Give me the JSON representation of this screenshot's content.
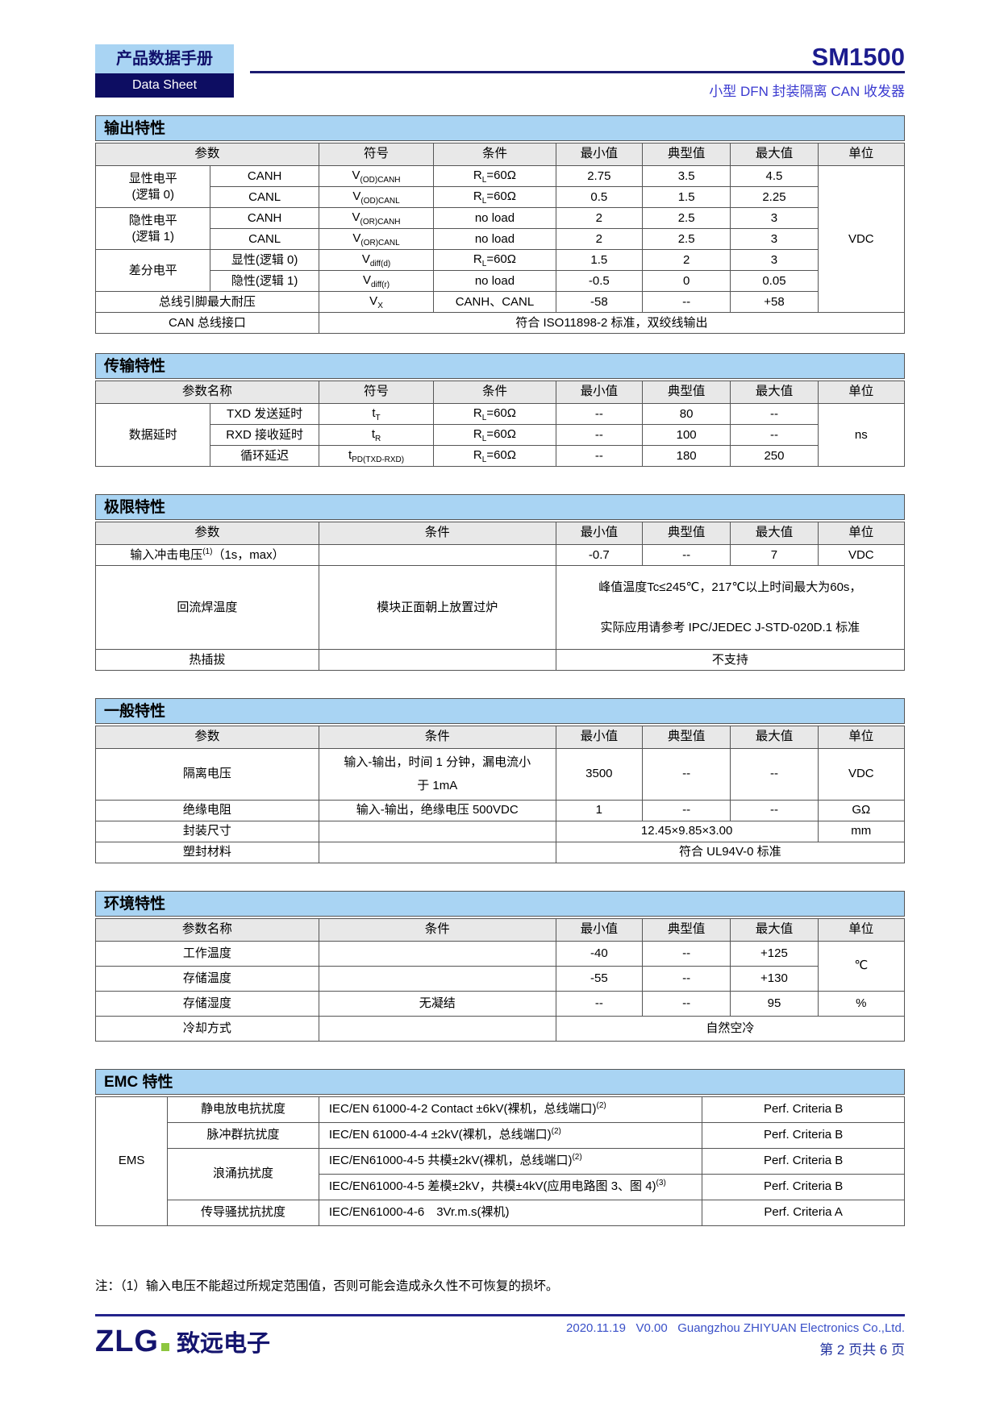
{
  "header": {
    "doc_type_cn": "产品数据手册",
    "doc_type_en": "Data Sheet",
    "product": "SM1500",
    "subtitle": "小型 DFN 封装隔离 CAN 收发器"
  },
  "colors": {
    "section_bar_blue": "#A9D4F3",
    "badge_navy": "#0D0D62",
    "title_navy": "#1C1C8E",
    "subtitle_blue": "#3A3AD0",
    "table_header_gray": "#E8E8E8",
    "footer_blue": "#3A50C8",
    "logo_green": "#8DC63F"
  },
  "tables": [
    {
      "id": "output",
      "title": "输出特性",
      "cls": "",
      "cols": [
        14.2,
        13.4,
        14.2,
        15.1,
        10.7,
        10.9,
        10.8,
        10.7
      ],
      "header": [
        {
          "t": "参数",
          "cs": 2
        },
        {
          "t": "符号"
        },
        {
          "t": "条件"
        },
        {
          "t": "最小值"
        },
        {
          "t": "典型值"
        },
        {
          "t": "最大值"
        },
        {
          "t": "单位"
        }
      ],
      "rows": [
        [
          {
            "t": "显性电平\n(逻辑 0)",
            "rs": 2
          },
          {
            "t": "CANH"
          },
          {
            "segs": [
              [
                "V"
              ],
              [
                "(OD)CANH",
                "sub"
              ]
            ]
          },
          {
            "segs": [
              [
                "R"
              ],
              [
                "L",
                "sub"
              ],
              [
                "=60Ω"
              ]
            ]
          },
          {
            "t": "2.75"
          },
          {
            "t": "3.5"
          },
          {
            "t": "4.5"
          },
          {
            "t": "VDC",
            "rs": 7
          }
        ],
        [
          {
            "t": "CANL"
          },
          {
            "segs": [
              [
                "V"
              ],
              [
                "(OD)CANL",
                "sub"
              ]
            ]
          },
          {
            "segs": [
              [
                "R"
              ],
              [
                "L",
                "sub"
              ],
              [
                "=60Ω"
              ]
            ]
          },
          {
            "t": "0.5"
          },
          {
            "t": "1.5"
          },
          {
            "t": "2.25"
          }
        ],
        [
          {
            "t": "隐性电平\n(逻辑 1)",
            "rs": 2
          },
          {
            "t": "CANH"
          },
          {
            "segs": [
              [
                "V"
              ],
              [
                "(OR)CANH",
                "sub"
              ]
            ]
          },
          {
            "t": "no load"
          },
          {
            "t": "2"
          },
          {
            "t": "2.5"
          },
          {
            "t": "3"
          }
        ],
        [
          {
            "t": "CANL"
          },
          {
            "segs": [
              [
                "V"
              ],
              [
                "(OR)CANL",
                "sub"
              ]
            ]
          },
          {
            "t": "no load"
          },
          {
            "t": "2"
          },
          {
            "t": "2.5"
          },
          {
            "t": "3"
          }
        ],
        [
          {
            "t": "差分电平",
            "rs": 2
          },
          {
            "t": "显性(逻辑 0)"
          },
          {
            "segs": [
              [
                "V"
              ],
              [
                "diff(d)",
                "sub"
              ]
            ]
          },
          {
            "segs": [
              [
                "R"
              ],
              [
                "L",
                "sub"
              ],
              [
                "=60Ω"
              ]
            ]
          },
          {
            "t": "1.5"
          },
          {
            "t": "2"
          },
          {
            "t": "3"
          }
        ],
        [
          {
            "t": "隐性(逻辑 1)"
          },
          {
            "segs": [
              [
                "V"
              ],
              [
                "diff(r)",
                "sub"
              ]
            ]
          },
          {
            "t": "no load"
          },
          {
            "t": "-0.5"
          },
          {
            "t": "0"
          },
          {
            "t": "0.05"
          }
        ],
        [
          {
            "t": "总线引脚最大耐压",
            "cs": 2
          },
          {
            "segs": [
              [
                "V"
              ],
              [
                "X",
                "sub"
              ]
            ]
          },
          {
            "t": "CANH、CANL"
          },
          {
            "t": "-58"
          },
          {
            "t": "--"
          },
          {
            "t": "+58"
          }
        ],
        [
          {
            "t": "CAN 总线接口",
            "cs": 2
          },
          {
            "t": "符合 ISO11898-2 标准，双绞线输出",
            "cs": 6
          }
        ]
      ]
    },
    {
      "id": "transmission",
      "title": "传输特性",
      "cls": "gap-lg",
      "cols": [
        14.2,
        13.4,
        14.2,
        15.1,
        10.7,
        10.9,
        10.8,
        10.7
      ],
      "header": [
        {
          "t": "参数名称",
          "cs": 2
        },
        {
          "t": "符号"
        },
        {
          "t": "条件"
        },
        {
          "t": "最小值"
        },
        {
          "t": "典型值"
        },
        {
          "t": "最大值"
        },
        {
          "t": "单位"
        }
      ],
      "rows": [
        [
          {
            "t": "数据延时",
            "rs": 3
          },
          {
            "t": "TXD 发送延时"
          },
          {
            "segs": [
              [
                "t"
              ],
              [
                "T",
                "sub"
              ]
            ]
          },
          {
            "segs": [
              [
                "R"
              ],
              [
                "L",
                "sub"
              ],
              [
                "=60Ω"
              ]
            ]
          },
          {
            "t": "--"
          },
          {
            "t": "80"
          },
          {
            "t": "--"
          },
          {
            "t": "ns",
            "rs": 3
          }
        ],
        [
          {
            "t": "RXD 接收延时"
          },
          {
            "segs": [
              [
                "t"
              ],
              [
                "R",
                "sub"
              ]
            ]
          },
          {
            "segs": [
              [
                "R"
              ],
              [
                "L",
                "sub"
              ],
              [
                "=60Ω"
              ]
            ]
          },
          {
            "t": "--"
          },
          {
            "t": "100"
          },
          {
            "t": "--"
          }
        ],
        [
          {
            "t": "循环延迟"
          },
          {
            "segs": [
              [
                "t"
              ],
              [
                "PD(TXD-RXD)",
                "sub"
              ]
            ]
          },
          {
            "segs": [
              [
                "R"
              ],
              [
                "L",
                "sub"
              ],
              [
                "=60Ω"
              ]
            ]
          },
          {
            "t": "--"
          },
          {
            "t": "180"
          },
          {
            "t": "250"
          }
        ]
      ]
    },
    {
      "id": "limit",
      "title": "极限特性",
      "cls": "gap-lg",
      "cols": [
        14.2,
        13.4,
        14.2,
        15.1,
        10.7,
        10.9,
        10.8,
        10.7
      ],
      "header": [
        {
          "t": "参数",
          "cs": 2
        },
        {
          "t": "条件",
          "cs": 2
        },
        {
          "t": "最小值"
        },
        {
          "t": "典型值"
        },
        {
          "t": "最大值"
        },
        {
          "t": "单位"
        }
      ],
      "rows": [
        [
          {
            "segs": [
              [
                "输入冲击电压"
              ],
              [
                "(1)",
                "sup"
              ],
              [
                "（1s，max）"
              ]
            ],
            "cs": 2
          },
          {
            "t": "",
            "cs": 2
          },
          {
            "t": "-0.7"
          },
          {
            "t": "--"
          },
          {
            "t": "7"
          },
          {
            "t": "VDC"
          }
        ],
        [
          {
            "t": "回流焊温度",
            "cs": 2
          },
          {
            "t": "模块正面朝上放置过炉",
            "cs": 2
          },
          {
            "t": "峰值温度Tc≤245℃，217℃以上时间最大为60s，\n实际应用请参考 IPC/JEDEC J-STD-020D.1 标准",
            "cs": 4,
            "cls": "tall"
          }
        ],
        [
          {
            "t": "热插拔",
            "cs": 2
          },
          {
            "t": "",
            "cs": 2
          },
          {
            "t": "不支持",
            "cs": 4
          }
        ]
      ]
    },
    {
      "id": "general",
      "title": "一般特性",
      "cls": "gap-lg",
      "cols": [
        14.2,
        13.4,
        14.2,
        15.1,
        10.7,
        10.9,
        10.8,
        10.7
      ],
      "header": [
        {
          "t": "参数",
          "cs": 2
        },
        {
          "t": "条件",
          "cs": 2
        },
        {
          "t": "最小值"
        },
        {
          "t": "典型值"
        },
        {
          "t": "最大值"
        },
        {
          "t": "单位"
        }
      ],
      "rows": [
        [
          {
            "t": "隔离电压",
            "cs": 2
          },
          {
            "t": "输入-输出，时间 1 分钟，漏电流小\n于 1mA",
            "cs": 2,
            "cls": "tall2"
          },
          {
            "t": "3500"
          },
          {
            "t": "--"
          },
          {
            "t": "--"
          },
          {
            "t": "VDC"
          }
        ],
        [
          {
            "t": "绝缘电阻",
            "cs": 2
          },
          {
            "t": "输入-输出，绝缘电压 500VDC",
            "cs": 2
          },
          {
            "t": "1"
          },
          {
            "t": "--"
          },
          {
            "t": "--"
          },
          {
            "t": "GΩ"
          }
        ],
        [
          {
            "t": "封装尺寸",
            "cs": 2
          },
          {
            "t": "",
            "cs": 2
          },
          {
            "t": "12.45×9.85×3.00",
            "cs": 3
          },
          {
            "t": "mm"
          }
        ],
        [
          {
            "t": "塑封材料",
            "cs": 2
          },
          {
            "t": "",
            "cs": 2
          },
          {
            "t": "符合 UL94V-0 标准",
            "cs": 4
          }
        ]
      ]
    },
    {
      "id": "environment",
      "title": "环境特性",
      "cls": "rows30 gap-lg",
      "cols": [
        14.2,
        13.4,
        14.2,
        15.1,
        10.7,
        10.9,
        10.8,
        10.7
      ],
      "header": [
        {
          "t": "参数名称",
          "cs": 2
        },
        {
          "t": "条件",
          "cs": 2
        },
        {
          "t": "最小值"
        },
        {
          "t": "典型值"
        },
        {
          "t": "最大值"
        },
        {
          "t": "单位"
        }
      ],
      "rows": [
        [
          {
            "t": "工作温度",
            "cs": 2
          },
          {
            "t": "",
            "cs": 2
          },
          {
            "t": "-40"
          },
          {
            "t": "--"
          },
          {
            "t": "+125"
          },
          {
            "t": "℃",
            "rs": 2
          }
        ],
        [
          {
            "t": "存储温度",
            "cs": 2
          },
          {
            "t": "",
            "cs": 2
          },
          {
            "t": "-55"
          },
          {
            "t": "--"
          },
          {
            "t": "+130"
          }
        ],
        [
          {
            "t": "存储湿度",
            "cs": 2
          },
          {
            "t": "无凝结",
            "cs": 2
          },
          {
            "t": "--"
          },
          {
            "t": "--"
          },
          {
            "t": "95"
          },
          {
            "t": "%"
          }
        ],
        [
          {
            "t": "冷却方式",
            "cs": 2
          },
          {
            "t": "",
            "cs": 2
          },
          {
            "t": "自然空冷",
            "cs": 4
          }
        ]
      ]
    },
    {
      "id": "emc",
      "title": "EMC 特性",
      "cls": "rows31",
      "cols": [
        8.9,
        18.7,
        47.4,
        25.0
      ],
      "header": null,
      "rows": [
        [
          {
            "t": "EMS",
            "rs": 5
          },
          {
            "t": "静电放电抗扰度"
          },
          {
            "segs": [
              [
                "IEC/EN 61000-4-2 Contact ±6kV(裸机，总线端口)"
              ],
              [
                "(2)",
                "sup"
              ]
            ],
            "cls": "left"
          },
          {
            "t": "Perf. Criteria B"
          }
        ],
        [
          {
            "t": "脉冲群抗扰度"
          },
          {
            "segs": [
              [
                "IEC/EN 61000-4-4 ±2kV(裸机，总线端口)"
              ],
              [
                "(2)",
                "sup"
              ]
            ],
            "cls": "left"
          },
          {
            "t": "Perf. Criteria B"
          }
        ],
        [
          {
            "t": "浪涌抗扰度",
            "rs": 2
          },
          {
            "segs": [
              [
                "IEC/EN61000-4-5 共模±2kV(裸机，总线端口)"
              ],
              [
                "(2)",
                "sup"
              ]
            ],
            "cls": "left"
          },
          {
            "t": "Perf. Criteria B"
          }
        ],
        [
          {
            "segs": [
              [
                "IEC/EN61000-4-5 差模±2kV，共模±4kV(应用电路图 3、图 4)"
              ],
              [
                "(3)",
                "sup"
              ]
            ],
            "cls": "left"
          },
          {
            "t": "Perf. Criteria B"
          }
        ],
        [
          {
            "t": "传导骚扰抗扰度"
          },
          {
            "segs": [
              [
                "IEC/EN61000-4-6　3Vr.m.s(裸机)"
              ]
            ],
            "cls": "left"
          },
          {
            "t": "Perf. Criteria A"
          }
        ]
      ]
    }
  ],
  "note": "注：（1）输入电压不能超过所规定范围值，否则可能会造成永久性不可恢复的损坏。",
  "footer": {
    "logo_en": "ZLG",
    "logo_cn": "致远电子",
    "info": "2020.11.19   V0.00   Guangzhou ZHIYUAN Electronics Co.,Ltd.",
    "page": "第 2 页共 6 页"
  }
}
